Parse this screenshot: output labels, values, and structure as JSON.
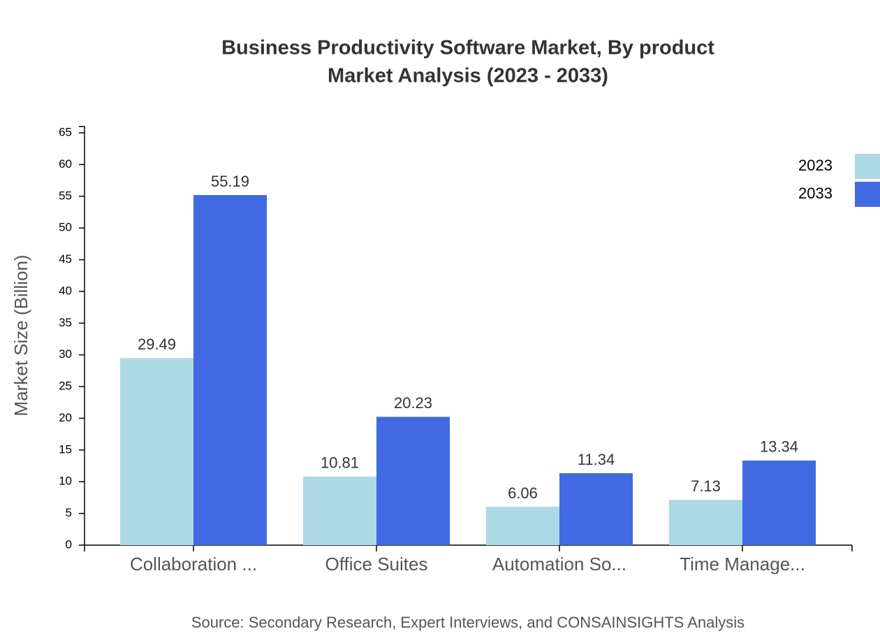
{
  "chart_data": {
    "type": "bar",
    "title": "Business Productivity Software Market, By product",
    "subtitle": "Market Analysis (2023 - 2033)",
    "y_label": "Market Size (Billion)",
    "source": "Source: Secondary Research, Expert Interviews, and CONSAINSIGHTS Analysis",
    "categories": [
      "Collaboration ...",
      "Office Suites",
      "Automation So...",
      "Time Manage..."
    ],
    "series": [
      {
        "name": "2023",
        "color": "#add8e6",
        "values": [
          29.49,
          10.81,
          6.06,
          7.13
        ]
      },
      {
        "name": "2033",
        "color": "#4169e1",
        "values": [
          55.19,
          20.23,
          11.34,
          13.34
        ]
      }
    ],
    "ylim": [
      0,
      66
    ],
    "yticks": [
      0,
      5,
      10,
      15,
      20,
      25,
      30,
      35,
      40,
      45,
      50,
      55,
      60,
      65
    ],
    "legend": "top-right"
  }
}
